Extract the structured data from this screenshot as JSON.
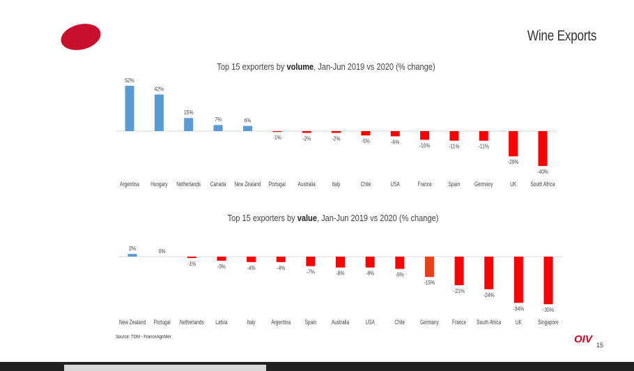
{
  "header": {
    "title": "Wine Exports"
  },
  "colors": {
    "positive": "#5b9bd5",
    "negative": "#ff0000",
    "highlight": "#e8401c",
    "brand": "#c8102e",
    "axis": "#d9d9d9"
  },
  "chart_data": [
    {
      "type": "bar",
      "title_prefix": "Top 15 exporters by ",
      "title_bold": "volume",
      "title_suffix": ", Jan-Jun 2019 vs 2020 (% change)",
      "categories": [
        "Argentina",
        "Hungary",
        "Netherlands",
        "Canada",
        "New Zealand",
        "Portugal",
        "Australia",
        "Italy",
        "Chile",
        "USA",
        "France",
        "Spain",
        "Germany",
        "UK",
        "South Africa"
      ],
      "values": [
        52,
        42,
        15,
        7,
        6,
        -1,
        -2,
        -2,
        -5,
        -6,
        -10,
        -11,
        -11,
        -29,
        -40
      ],
      "labels": [
        "52%",
        "42%",
        "15%",
        "7%",
        "6%",
        "-1%",
        "-2%",
        "-2%",
        "-5%",
        "-6%",
        "-10%",
        "-11%",
        "-11%",
        "-29%",
        "-40%"
      ],
      "xlabel": "",
      "ylabel": "",
      "ylim": [
        -40,
        52
      ]
    },
    {
      "type": "bar",
      "title_prefix": "Top 15 exporters by ",
      "title_bold": "value",
      "title_suffix": ", Jan-Jun 2019 vs 2020 (% change)",
      "categories": [
        "New Zealand",
        "Portugal",
        "Netherlands",
        "Latvia",
        "Italy",
        "Argentina",
        "Spain",
        "Australia",
        "USA",
        "Chile",
        "Germany",
        "France",
        "South Africa",
        "UK",
        "Singapore"
      ],
      "values": [
        2,
        0,
        -1,
        -3,
        -4,
        -4,
        -7,
        -8,
        -8,
        -9,
        -15,
        -21,
        -24,
        -34,
        -35
      ],
      "labels": [
        "2%",
        "0%",
        "-1%",
        "-3%",
        "-4%",
        "-4%",
        "-7%",
        "-8%",
        "-8%",
        "-9%",
        "-15%",
        "-21%",
        "-24%",
        "-34%",
        "-35%"
      ],
      "highlight_index": 10,
      "xlabel": "",
      "ylabel": "",
      "ylim": [
        -35,
        2
      ]
    }
  ],
  "footer": {
    "source": "Source: TDM - FranceAgriMer",
    "brand": "OIV",
    "page_number": "15"
  }
}
